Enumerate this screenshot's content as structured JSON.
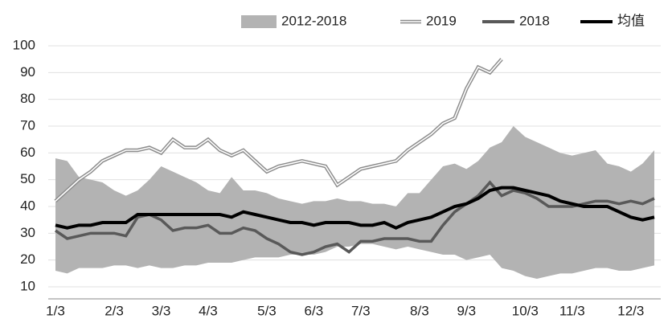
{
  "chart_data": {
    "type": "line",
    "categories": [
      "1/3",
      null,
      null,
      null,
      null,
      "2/3",
      null,
      null,
      null,
      "3/3",
      null,
      null,
      null,
      "4/3",
      null,
      null,
      null,
      null,
      "5/3",
      null,
      null,
      null,
      "6/3",
      null,
      null,
      null,
      "7/3",
      null,
      null,
      null,
      null,
      "8/3",
      null,
      null,
      null,
      "9/3",
      null,
      null,
      null,
      null,
      "10/3",
      null,
      null,
      null,
      "11/3",
      null,
      null,
      null,
      null,
      "12/3",
      null,
      null
    ],
    "ylim": [
      10,
      100
    ],
    "yticks": [
      10,
      20,
      30,
      40,
      50,
      60,
      70,
      80,
      90,
      100
    ],
    "grid": true,
    "legend": "top",
    "series": [
      {
        "name": "2012-2018",
        "style": "area",
        "color": "#b3b3b3",
        "values": [
          58,
          57,
          51,
          50,
          49,
          46,
          44,
          46,
          50,
          55,
          53,
          51,
          49,
          46,
          45,
          51,
          46,
          46,
          45,
          43,
          42,
          41,
          42,
          42,
          43,
          42,
          42,
          41,
          41,
          40,
          45,
          45,
          50,
          55,
          56,
          54,
          57,
          62,
          64,
          70,
          66,
          64,
          62,
          60,
          59,
          60,
          61,
          56,
          55,
          53,
          56,
          61
        ],
        "low": [
          16,
          15,
          17,
          17,
          17,
          18,
          18,
          17,
          18,
          17,
          17,
          18,
          18,
          19,
          19,
          19,
          20,
          21,
          21,
          21,
          22,
          22,
          22,
          23,
          25,
          25,
          26,
          26,
          25,
          24,
          25,
          24,
          23,
          22,
          22,
          20,
          21,
          22,
          17,
          16,
          14,
          13,
          14,
          15,
          15,
          16,
          17,
          17,
          16,
          16,
          17,
          18
        ]
      },
      {
        "name": "2019",
        "style": "double",
        "color": "#8c8c8c",
        "values": [
          42,
          46,
          50,
          53,
          57,
          59,
          61,
          61,
          62,
          60,
          65,
          62,
          62,
          65,
          61,
          59,
          61,
          57,
          53,
          55,
          56,
          57,
          56,
          55,
          48,
          51,
          54,
          55,
          56,
          57,
          61,
          64,
          67,
          71,
          73,
          84,
          92,
          90,
          95,
          null,
          null,
          null,
          null,
          null,
          null,
          null,
          null,
          null,
          null,
          null,
          null,
          null
        ]
      },
      {
        "name": "2018",
        "style": "line",
        "color": "#595959",
        "values": [
          31,
          28,
          29,
          30,
          30,
          30,
          29,
          36,
          37,
          35,
          31,
          32,
          32,
          33,
          30,
          30,
          32,
          31,
          28,
          26,
          23,
          22,
          23,
          25,
          26,
          23,
          27,
          27,
          28,
          28,
          28,
          27,
          27,
          33,
          38,
          41,
          44,
          49,
          44,
          46,
          45,
          43,
          40,
          40,
          40,
          41,
          42,
          42,
          41,
          42,
          41,
          43
        ]
      },
      {
        "name": "均值",
        "style": "line",
        "color": "#000000",
        "values": [
          33,
          32,
          33,
          33,
          34,
          34,
          34,
          37,
          37,
          37,
          37,
          37,
          37,
          37,
          37,
          36,
          38,
          37,
          36,
          35,
          34,
          34,
          33,
          34,
          34,
          34,
          33,
          33,
          34,
          32,
          34,
          35,
          36,
          38,
          40,
          41,
          43,
          46,
          47,
          47,
          46,
          45,
          44,
          42,
          41,
          40,
          40,
          40,
          38,
          36,
          35,
          36
        ]
      }
    ]
  }
}
